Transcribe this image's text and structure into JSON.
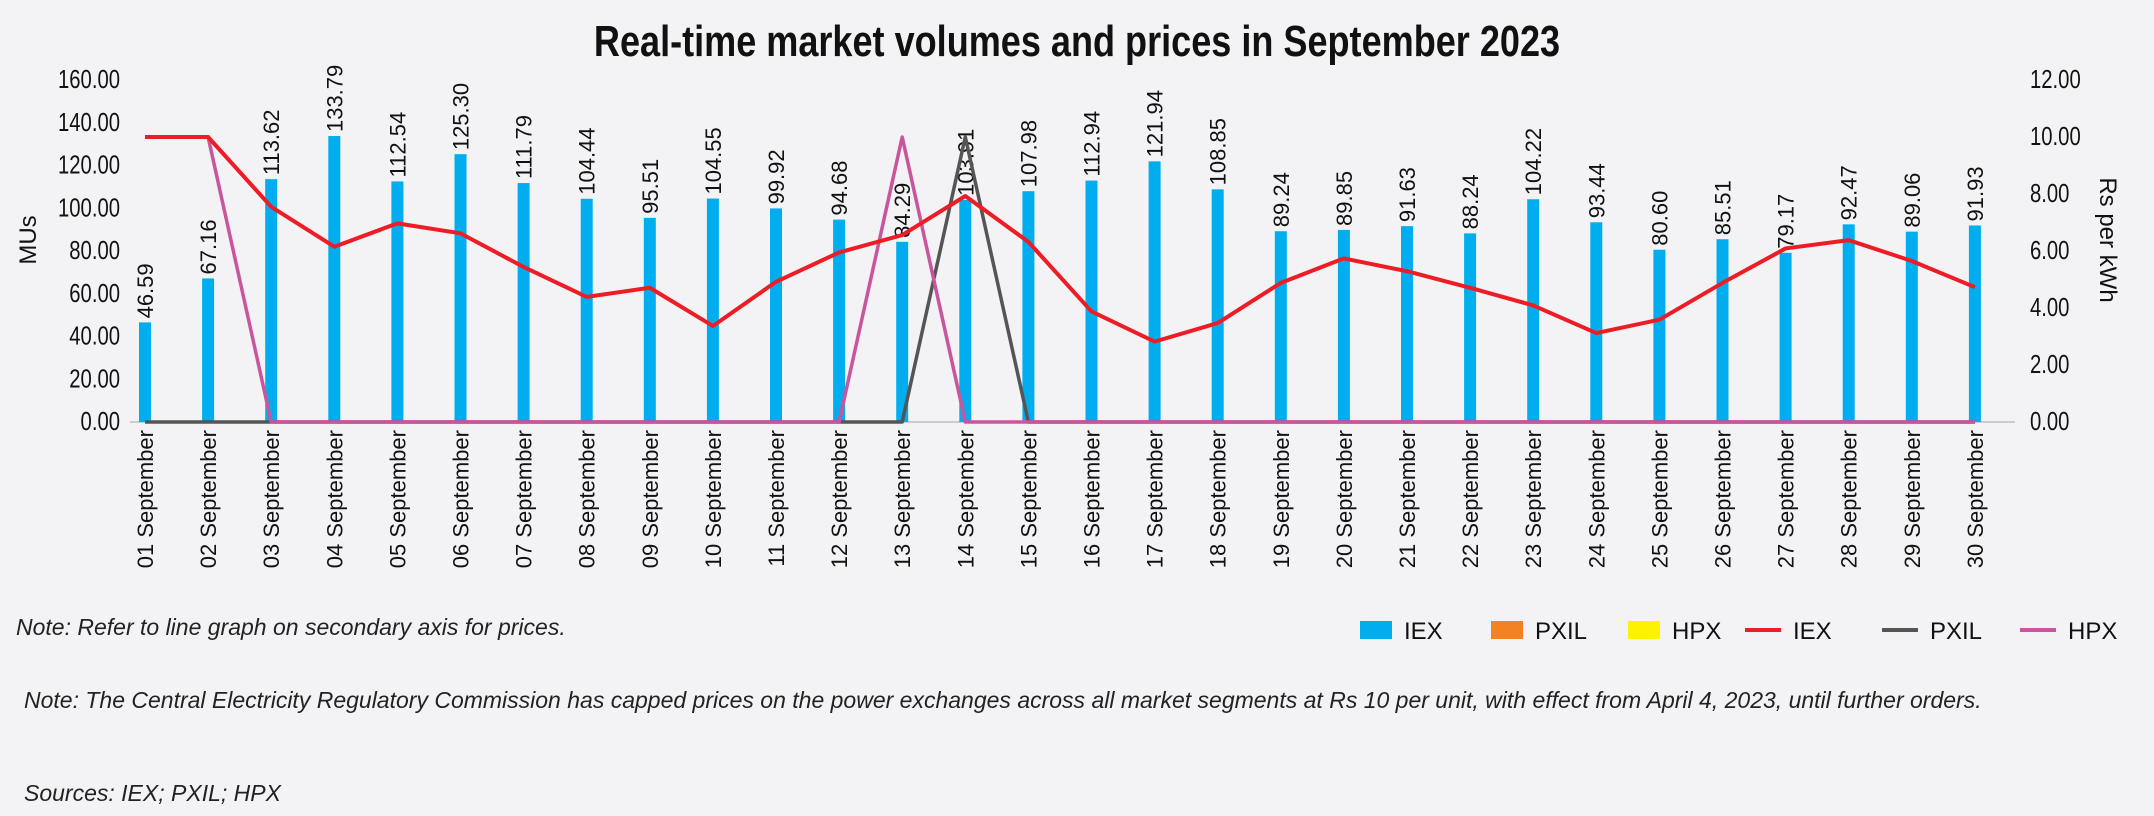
{
  "chart_data": {
    "type": "bar+line",
    "title": "Real-time market volumes and prices in September 2023",
    "ylabel": "MUs",
    "y2label": "Rs per kWh",
    "ylim": [
      0,
      160
    ],
    "y2lim": [
      0,
      12
    ],
    "yticks": [
      "0.00",
      "20.00",
      "40.00",
      "60.00",
      "80.00",
      "100.00",
      "120.00",
      "140.00",
      "160.00"
    ],
    "y2ticks": [
      "0.00",
      "2.00",
      "4.00",
      "6.00",
      "8.00",
      "10.00",
      "12.00"
    ],
    "categories": [
      "01 September",
      "02 September",
      "03 September",
      "04 September",
      "05 September",
      "06 September",
      "07 September",
      "08 September",
      "09 September",
      "10 September",
      "11 September",
      "12 September",
      "13 September",
      "14 September",
      "15 September",
      "16 September",
      "17 September",
      "18 September",
      "19 September",
      "20 September",
      "21 September",
      "22 September",
      "23 September",
      "24 September",
      "25 September",
      "26 September",
      "27 September",
      "28 September",
      "29 September",
      "30 September"
    ],
    "bars": [
      {
        "name": "IEX",
        "color": "#00aeef",
        "values": [
          46.59,
          67.16,
          113.62,
          133.79,
          112.54,
          125.3,
          111.79,
          104.44,
          95.51,
          104.55,
          99.92,
          94.68,
          84.29,
          103.91,
          107.98,
          112.94,
          121.94,
          108.85,
          89.24,
          89.85,
          91.63,
          88.24,
          104.22,
          93.44,
          80.6,
          85.51,
          79.17,
          92.47,
          89.06,
          91.93
        ],
        "labels": [
          "46.59",
          "67.16",
          "113.62",
          "133.79",
          "112.54",
          "125.30",
          "111.79",
          "104.44",
          "95.51",
          "104.55",
          "99.92",
          "94.68",
          "84.29",
          "103.91",
          "107.98",
          "112.94",
          "121.94",
          "108.85",
          "89.24",
          "89.85",
          "91.63",
          "88.24",
          "104.22",
          "93.44",
          "80.60",
          "85.51",
          "79.17",
          "92.47",
          "89.06",
          "91.93"
        ]
      },
      {
        "name": "PXIL",
        "color": "#f58220",
        "values": []
      },
      {
        "name": "HPX",
        "color": "#fff200",
        "values": []
      }
    ],
    "lines": [
      {
        "name": "IEX",
        "color": "#ee1c25",
        "values": [
          10,
          10,
          7.55,
          6.15,
          6.97,
          6.62,
          5.44,
          4.39,
          4.71,
          3.37,
          4.92,
          5.95,
          6.56,
          7.93,
          6.32,
          3.88,
          2.82,
          3.47,
          4.88,
          5.74,
          5.29,
          4.71,
          4.09,
          3.12,
          3.59,
          4.88,
          6.09,
          6.38,
          5.65,
          4.73
        ]
      },
      {
        "name": "PXIL",
        "color": "#555555",
        "values": [
          0,
          0,
          0,
          0,
          0,
          0,
          0,
          0,
          0,
          0,
          0,
          0,
          0,
          10,
          0,
          0,
          0,
          0,
          0,
          0,
          0,
          0,
          0,
          0,
          0,
          0,
          0,
          0,
          0,
          0
        ]
      },
      {
        "name": "HPX",
        "color": "#c9559d",
        "values": [
          10,
          10,
          0,
          0,
          0,
          0,
          0,
          0,
          0,
          0,
          0,
          0,
          10,
          0,
          0,
          0,
          0,
          0,
          0,
          0,
          0,
          0,
          0,
          0,
          0,
          0,
          0,
          0,
          0,
          0
        ]
      }
    ],
    "legend": "bottom-right"
  },
  "notes": {
    "axis_note": "Note: Refer to line graph on secondary axis for prices.",
    "cap_note": "Note: The Central Electricity Regulatory Commission has capped prices on the power exchanges across all market segments at Rs 10 per unit, with effect from April 4, 2023, until further orders.",
    "sources": "Sources: IEX; PXIL; HPX"
  }
}
